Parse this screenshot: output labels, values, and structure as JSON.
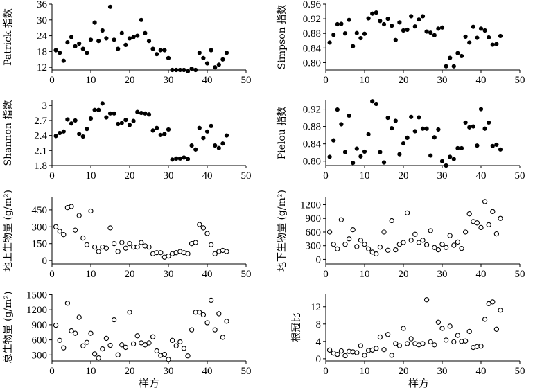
{
  "x_axis_label": "样方",
  "chart_data": [
    {
      "type": "scatter",
      "id": "patrick",
      "ylabel": "Patrick 指数",
      "marker": "filled",
      "xlim": [
        0,
        50
      ],
      "ylim": [
        11,
        36
      ],
      "xticks": [
        0,
        10,
        20,
        30,
        40,
        50
      ],
      "yticks": [
        12,
        18,
        24,
        30,
        36
      ],
      "x": [
        1,
        2,
        3,
        4,
        5,
        6,
        7,
        8,
        9,
        10,
        11,
        12,
        13,
        14,
        15,
        16,
        17,
        18,
        19,
        20,
        21,
        22,
        23,
        24,
        25,
        26,
        27,
        28,
        29,
        30,
        31,
        32,
        33,
        34,
        35,
        36,
        37,
        38,
        39,
        40,
        41,
        42,
        43,
        44,
        45
      ],
      "y": [
        18.5,
        17.5,
        14.5,
        21.5,
        23.5,
        20,
        21,
        19,
        17.5,
        22.5,
        29,
        22,
        26,
        23,
        35,
        22.5,
        19,
        25,
        20.5,
        23,
        23.5,
        24,
        30,
        25,
        22,
        19,
        17,
        18.5,
        18.5,
        15.5,
        11,
        11,
        11,
        11,
        10.5,
        11.5,
        11,
        17.5,
        15.5,
        13.5,
        18.5,
        12,
        13,
        15,
        17.5
      ]
    },
    {
      "type": "scatter",
      "id": "simpson",
      "ylabel": "Simpson 指数",
      "marker": "filled",
      "xlim": [
        0,
        50
      ],
      "ylim": [
        0.78,
        0.96
      ],
      "xticks": [
        0,
        10,
        20,
        30,
        40,
        50
      ],
      "yticks": [
        0.8,
        0.84,
        0.88,
        0.92,
        0.96
      ],
      "x": [
        1,
        2,
        3,
        4,
        5,
        6,
        7,
        8,
        9,
        10,
        11,
        12,
        13,
        14,
        15,
        16,
        17,
        18,
        19,
        20,
        21,
        22,
        23,
        24,
        25,
        26,
        27,
        28,
        29,
        30,
        31,
        32,
        33,
        34,
        35,
        36,
        37,
        38,
        39,
        40,
        41,
        42,
        43,
        44,
        45
      ],
      "y": [
        0.855,
        0.876,
        0.905,
        0.906,
        0.88,
        0.917,
        0.845,
        0.881,
        0.867,
        0.879,
        0.921,
        0.934,
        0.937,
        0.914,
        0.905,
        0.92,
        0.901,
        0.862,
        0.91,
        0.888,
        0.89,
        0.927,
        0.899,
        0.918,
        0.927,
        0.885,
        0.882,
        0.875,
        0.893,
        0.896,
        0.79,
        0.813,
        0.79,
        0.826,
        0.818,
        0.871,
        0.855,
        0.898,
        0.868,
        0.893,
        0.888,
        0.869,
        0.849,
        0.851,
        0.873
      ]
    },
    {
      "type": "scatter",
      "id": "shannon",
      "ylabel": "Shannon 指数",
      "marker": "filled",
      "xlim": [
        0,
        50
      ],
      "ylim": [
        1.8,
        3.1
      ],
      "xticks": [
        0,
        10,
        20,
        30,
        40,
        50
      ],
      "yticks": [
        1.8,
        2.1,
        2.4,
        2.7,
        3.0
      ],
      "x": [
        1,
        2,
        3,
        4,
        5,
        6,
        7,
        8,
        9,
        10,
        11,
        12,
        13,
        14,
        15,
        16,
        17,
        18,
        19,
        20,
        21,
        22,
        23,
        24,
        25,
        26,
        27,
        28,
        29,
        30,
        31,
        32,
        33,
        34,
        35,
        36,
        37,
        38,
        39,
        40,
        41,
        42,
        43,
        44,
        45
      ],
      "y": [
        2.39,
        2.45,
        2.48,
        2.72,
        2.64,
        2.7,
        2.43,
        2.38,
        2.53,
        2.74,
        2.91,
        2.91,
        3.04,
        2.76,
        2.84,
        2.84,
        2.63,
        2.65,
        2.71,
        2.61,
        2.69,
        2.87,
        2.85,
        2.84,
        2.82,
        2.5,
        2.55,
        2.41,
        2.43,
        2.52,
        1.92,
        1.94,
        1.94,
        1.96,
        1.93,
        2.2,
        2.12,
        2.55,
        2.35,
        2.48,
        2.59,
        2.2,
        2.15,
        2.24,
        2.4
      ]
    },
    {
      "type": "scatter",
      "id": "pielou",
      "ylabel": "Pielou 指数",
      "marker": "filled",
      "xlim": [
        0,
        50
      ],
      "ylim": [
        0.79,
        0.94
      ],
      "xticks": [
        0,
        10,
        20,
        30,
        40,
        50
      ],
      "yticks": [
        0.8,
        0.84,
        0.88,
        0.92
      ],
      "x": [
        1,
        2,
        3,
        4,
        5,
        6,
        7,
        8,
        9,
        10,
        11,
        12,
        13,
        14,
        15,
        16,
        17,
        18,
        19,
        20,
        21,
        22,
        23,
        24,
        25,
        26,
        27,
        28,
        29,
        30,
        31,
        32,
        33,
        34,
        35,
        36,
        37,
        38,
        39,
        40,
        41,
        42,
        43,
        44,
        45
      ],
      "y": [
        0.81,
        0.848,
        0.919,
        0.885,
        0.821,
        0.905,
        0.796,
        0.829,
        0.811,
        0.822,
        0.862,
        0.938,
        0.932,
        0.821,
        0.797,
        0.9,
        0.876,
        0.893,
        0.816,
        0.841,
        0.854,
        0.902,
        0.869,
        0.901,
        0.875,
        0.875,
        0.813,
        0.855,
        0.873,
        0.8,
        0.79,
        0.81,
        0.805,
        0.83,
        0.83,
        0.889,
        0.878,
        0.88,
        0.836,
        0.92,
        0.875,
        0.889,
        0.835,
        0.838,
        0.827
      ]
    },
    {
      "type": "scatter",
      "id": "aboveground",
      "ylabel": "地上生物量 (g/m²)",
      "marker": "open",
      "xlim": [
        0,
        50
      ],
      "ylim": [
        -30,
        560
      ],
      "xticks": [
        0,
        10,
        20,
        30,
        40,
        50
      ],
      "yticks": [
        0,
        150,
        300,
        450
      ],
      "x": [
        1,
        2,
        3,
        4,
        5,
        6,
        7,
        8,
        9,
        10,
        11,
        12,
        13,
        14,
        15,
        16,
        17,
        18,
        19,
        20,
        21,
        22,
        23,
        24,
        25,
        26,
        27,
        28,
        29,
        30,
        31,
        32,
        33,
        34,
        35,
        36,
        37,
        38,
        39,
        40,
        41,
        42,
        43,
        44,
        45
      ],
      "y": [
        300,
        260,
        230,
        470,
        480,
        270,
        400,
        200,
        140,
        440,
        120,
        80,
        120,
        110,
        290,
        150,
        80,
        160,
        110,
        150,
        120,
        120,
        160,
        130,
        120,
        60,
        70,
        70,
        30,
        40,
        60,
        70,
        80,
        70,
        60,
        150,
        160,
        320,
        290,
        240,
        140,
        60,
        80,
        90,
        80
      ]
    },
    {
      "type": "scatter",
      "id": "belowground",
      "ylabel": "地下生物量 (g/m²)",
      "marker": "open",
      "xlim": [
        0,
        50
      ],
      "ylim": [
        -100,
        1360
      ],
      "xticks": [
        0,
        10,
        20,
        30,
        40,
        50
      ],
      "yticks": [
        0,
        300,
        600,
        900,
        1200
      ],
      "x": [
        1,
        2,
        3,
        4,
        5,
        6,
        7,
        8,
        9,
        10,
        11,
        12,
        13,
        14,
        15,
        16,
        17,
        18,
        19,
        20,
        21,
        22,
        23,
        24,
        25,
        26,
        27,
        28,
        29,
        30,
        31,
        32,
        33,
        34,
        35,
        36,
        37,
        38,
        39,
        40,
        41,
        42,
        43,
        44,
        45
      ],
      "y": [
        600,
        330,
        230,
        870,
        330,
        450,
        650,
        280,
        420,
        330,
        230,
        160,
        120,
        270,
        600,
        200,
        850,
        210,
        330,
        370,
        1020,
        420,
        550,
        370,
        420,
        320,
        630,
        260,
        210,
        330,
        260,
        520,
        310,
        380,
        240,
        600,
        1000,
        830,
        800,
        700,
        1270,
        760,
        1050,
        560,
        900
      ]
    },
    {
      "type": "scatter",
      "id": "total",
      "ylabel": "总生物量 (g/m²)",
      "marker": "open",
      "xlim": [
        0,
        50
      ],
      "ylim": [
        180,
        1520
      ],
      "xticks": [
        0,
        10,
        20,
        30,
        40,
        50
      ],
      "yticks": [
        300,
        600,
        900,
        1200,
        1500
      ],
      "x": [
        1,
        2,
        3,
        4,
        5,
        6,
        7,
        8,
        9,
        10,
        11,
        12,
        13,
        14,
        15,
        16,
        17,
        18,
        19,
        20,
        21,
        22,
        23,
        24,
        25,
        26,
        27,
        28,
        29,
        30,
        31,
        32,
        33,
        34,
        35,
        36,
        37,
        38,
        39,
        40,
        41,
        42,
        43,
        44,
        45
      ],
      "y": [
        890,
        590,
        440,
        1330,
        780,
        730,
        1050,
        480,
        550,
        730,
        320,
        240,
        420,
        630,
        490,
        1000,
        300,
        500,
        450,
        1150,
        520,
        680,
        540,
        500,
        540,
        660,
        380,
        290,
        310,
        210,
        590,
        480,
        560,
        430,
        280,
        800,
        1150,
        1150,
        1100,
        940,
        1390,
        800,
        1120,
        650,
        970
      ]
    },
    {
      "type": "scatter",
      "id": "root-shoot",
      "ylabel": "根冠比",
      "marker": "open",
      "xlim": [
        0,
        50
      ],
      "ylim": [
        -0.5,
        15
      ],
      "xticks": [
        0,
        10,
        20,
        30,
        40,
        50
      ],
      "yticks": [
        0,
        4,
        8,
        12
      ],
      "x": [
        1,
        2,
        3,
        4,
        5,
        6,
        7,
        8,
        9,
        10,
        11,
        12,
        13,
        14,
        15,
        16,
        17,
        18,
        19,
        20,
        21,
        22,
        23,
        24,
        25,
        26,
        27,
        28,
        29,
        30,
        31,
        32,
        33,
        34,
        35,
        36,
        37,
        38,
        39,
        40,
        41,
        42,
        43,
        44,
        45
      ],
      "y": [
        2.0,
        1.3,
        1.0,
        1.8,
        0.7,
        1.7,
        1.6,
        1.4,
        3.0,
        0.8,
        1.9,
        2.0,
        2.4,
        5.0,
        2.1,
        5.6,
        0.8,
        3.5,
        3.0,
        7.0,
        3.5,
        4.6,
        3.5,
        3.2,
        3.5,
        13.6,
        3.9,
        3.2,
        8.4,
        7.0,
        4.3,
        7.5,
        3.9,
        5.4,
        4.0,
        4.1,
        6.3,
        2.6,
        2.8,
        2.9,
        9.1,
        12.7,
        13.1,
        6.8,
        11.2
      ]
    }
  ]
}
